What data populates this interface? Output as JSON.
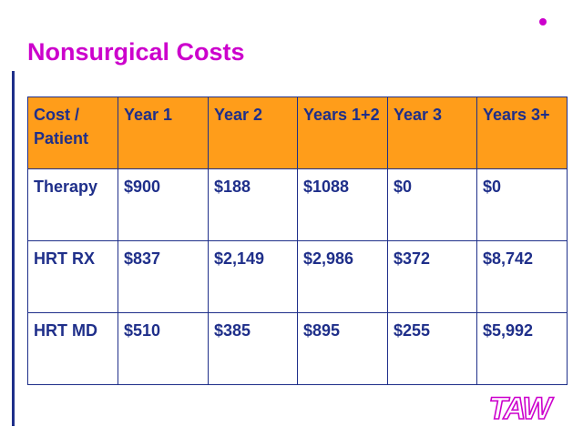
{
  "slide": {
    "title": "Nonsurgical Costs",
    "accent_color": "#cc00cc",
    "header_color": "#ff9d1a",
    "text_color": "#1f2f8a"
  },
  "table": {
    "headers": [
      "Cost / Patient",
      "Year 1",
      "Year 2",
      "Years 1+2",
      "Year 3",
      "Years 3+"
    ],
    "rows": [
      [
        "Therapy",
        "$900",
        "$188",
        "$1088",
        "$0",
        "$0"
      ],
      [
        "HRT RX",
        "$837",
        "$2,149",
        "$2,986",
        "$372",
        "$8,742"
      ],
      [
        "HRT MD",
        "$510",
        "$385",
        "$895",
        "$255",
        "$5,992"
      ]
    ]
  },
  "logo": {
    "text": "TAW",
    "icon": "taw-logo"
  }
}
